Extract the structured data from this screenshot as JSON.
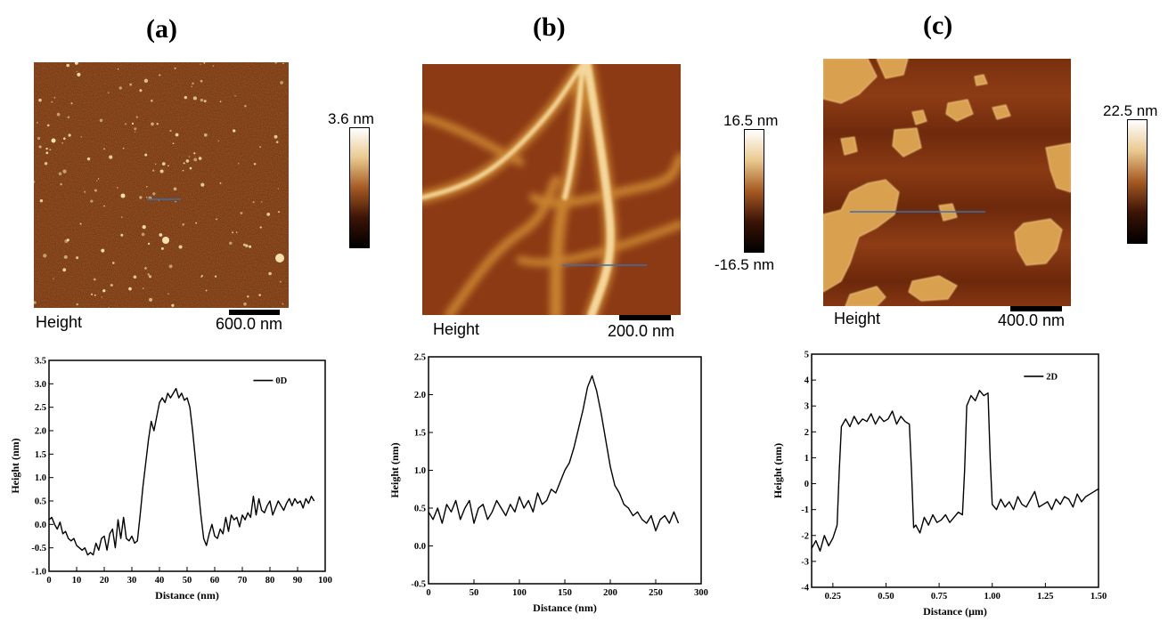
{
  "panels": [
    {
      "label": "(a)",
      "image": {
        "caption": "Height",
        "scale_bar": "600.0 nm",
        "colorbar_labels": [
          "3.6 nm"
        ]
      },
      "chart_data": {
        "type": "line",
        "xlabel": "Distance (nm)",
        "ylabel": "Height (nm)",
        "xlim": [
          0,
          100
        ],
        "ylim": [
          -1.0,
          3.5
        ],
        "xticks": [
          0,
          10,
          20,
          30,
          40,
          50,
          60,
          70,
          80,
          90,
          100
        ],
        "xtick_labels": [
          "0",
          "10",
          "20",
          "30",
          "40",
          "50",
          "60",
          "70",
          "80",
          "90",
          "100"
        ],
        "yticks": [
          -1.0,
          -0.5,
          0.0,
          0.5,
          1.0,
          1.5,
          2.0,
          2.5,
          3.0,
          3.5
        ],
        "ytick_labels": [
          "-1.0",
          "-0.5",
          "0.0",
          "0.5",
          "1.0",
          "1.5",
          "2.0",
          "2.5",
          "3.0",
          "3.5"
        ],
        "legend": "top-right",
        "series": [
          {
            "name": "0D",
            "x": [
              0,
              1,
              2,
              3,
              4,
              5,
              6,
              7,
              8,
              9,
              10,
              11,
              12,
              13,
              14,
              15,
              16,
              17,
              18,
              19,
              20,
              21,
              22,
              23,
              24,
              25,
              26,
              27,
              28,
              29,
              30,
              31,
              32,
              33,
              34,
              35,
              36,
              37,
              38,
              39,
              40,
              41,
              42,
              43,
              44,
              45,
              46,
              47,
              48,
              49,
              50,
              51,
              52,
              53,
              54,
              55,
              56,
              57,
              58,
              59,
              60,
              61,
              62,
              63,
              64,
              65,
              66,
              67,
              68,
              69,
              70,
              71,
              72,
              73,
              74,
              75,
              76,
              77,
              78,
              79,
              80,
              81,
              82,
              83,
              84,
              85,
              86,
              87,
              88,
              89,
              90,
              91,
              92,
              93,
              94,
              95,
              96
            ],
            "y": [
              0.1,
              0.15,
              0.0,
              -0.1,
              0.05,
              -0.2,
              -0.15,
              -0.3,
              -0.35,
              -0.3,
              -0.45,
              -0.5,
              -0.55,
              -0.5,
              -0.65,
              -0.6,
              -0.65,
              -0.4,
              -0.55,
              -0.3,
              -0.25,
              -0.55,
              -0.2,
              -0.1,
              -0.5,
              0.1,
              -0.3,
              0.15,
              -0.3,
              -0.35,
              -0.25,
              -0.4,
              -0.35,
              0.2,
              0.8,
              1.3,
              1.8,
              2.2,
              2.0,
              2.3,
              2.6,
              2.7,
              2.6,
              2.8,
              2.7,
              2.8,
              2.9,
              2.7,
              2.8,
              2.65,
              2.7,
              2.5,
              2.0,
              1.4,
              0.8,
              0.2,
              -0.3,
              -0.45,
              -0.2,
              0.0,
              -0.25,
              -0.3,
              -0.1,
              -0.2,
              0.15,
              -0.15,
              0.2,
              0.1,
              0.15,
              -0.05,
              0.2,
              0.1,
              0.25,
              0.15,
              0.6,
              0.2,
              0.55,
              0.3,
              0.25,
              0.4,
              0.5,
              0.2,
              0.35,
              0.5,
              0.4,
              0.3,
              0.45,
              0.55,
              0.4,
              0.55,
              0.45,
              0.5,
              0.35,
              0.55,
              0.45,
              0.6,
              0.5
            ]
          }
        ]
      }
    },
    {
      "label": "(b)",
      "image": {
        "caption": "Height",
        "scale_bar": "200.0 nm",
        "colorbar_labels": [
          "16.5 nm",
          "-16.5 nm"
        ]
      },
      "chart_data": {
        "type": "line",
        "xlabel": "Distance (nm)",
        "ylabel": "Height (nm)",
        "xlim": [
          0,
          300
        ],
        "ylim": [
          -0.5,
          2.5
        ],
        "xticks": [
          0,
          50,
          100,
          150,
          200,
          250,
          300
        ],
        "xtick_labels": [
          "0",
          "50",
          "100",
          "150",
          "200",
          "250",
          "300"
        ],
        "yticks": [
          -0.5,
          0.0,
          0.5,
          1.0,
          1.5,
          2.0,
          2.5
        ],
        "ytick_labels": [
          "-0.5",
          "0.0",
          "0.5",
          "1.0",
          "1.5",
          "2.0",
          "2.5"
        ],
        "series": [
          {
            "x": [
              0,
              5,
              10,
              15,
              20,
              25,
              30,
              35,
              40,
              45,
              50,
              55,
              60,
              65,
              70,
              75,
              80,
              85,
              90,
              95,
              100,
              105,
              110,
              115,
              120,
              125,
              130,
              135,
              140,
              145,
              150,
              155,
              160,
              165,
              170,
              175,
              180,
              185,
              190,
              195,
              200,
              205,
              210,
              215,
              220,
              225,
              230,
              235,
              240,
              245,
              250,
              255,
              260,
              265,
              270,
              275
            ],
            "y": [
              0.45,
              0.35,
              0.5,
              0.3,
              0.55,
              0.45,
              0.6,
              0.35,
              0.5,
              0.6,
              0.3,
              0.5,
              0.55,
              0.35,
              0.45,
              0.6,
              0.5,
              0.4,
              0.55,
              0.45,
              0.65,
              0.5,
              0.6,
              0.45,
              0.7,
              0.55,
              0.6,
              0.75,
              0.7,
              0.85,
              1.0,
              1.1,
              1.3,
              1.55,
              1.8,
              2.1,
              2.25,
              2.05,
              1.75,
              1.4,
              1.05,
              0.8,
              0.7,
              0.55,
              0.5,
              0.4,
              0.45,
              0.35,
              0.3,
              0.4,
              0.2,
              0.35,
              0.4,
              0.3,
              0.45,
              0.3
            ]
          }
        ]
      }
    },
    {
      "label": "(c)",
      "image": {
        "caption": "Height",
        "scale_bar": "400.0 nm",
        "colorbar_labels": [
          "22.5 nm"
        ]
      },
      "chart_data": {
        "type": "line",
        "xlabel": "Distance (μm)",
        "ylabel": "Height (nm)",
        "xlim": [
          0.15,
          1.5
        ],
        "ylim": [
          -4,
          5
        ],
        "xticks": [
          0.25,
          0.5,
          0.75,
          1.0,
          1.25,
          1.5
        ],
        "xtick_labels": [
          "0.25",
          "0.50",
          "0.75",
          "1.00",
          "1.25",
          "1.50"
        ],
        "yticks": [
          -4,
          -3,
          -2,
          -1,
          0,
          1,
          2,
          3,
          4,
          5
        ],
        "ytick_labels": [
          "-4",
          "-3",
          "-2",
          "-1",
          "0",
          "1",
          "2",
          "3",
          "4",
          "5"
        ],
        "legend": "top-right",
        "series": [
          {
            "name": "2D",
            "x": [
              0.15,
              0.17,
              0.19,
              0.21,
              0.23,
              0.25,
              0.27,
              0.28,
              0.29,
              0.31,
              0.33,
              0.35,
              0.37,
              0.39,
              0.41,
              0.43,
              0.45,
              0.47,
              0.49,
              0.51,
              0.53,
              0.55,
              0.57,
              0.59,
              0.61,
              0.62,
              0.63,
              0.64,
              0.66,
              0.68,
              0.7,
              0.72,
              0.74,
              0.76,
              0.78,
              0.8,
              0.82,
              0.84,
              0.86,
              0.87,
              0.88,
              0.9,
              0.92,
              0.94,
              0.96,
              0.98,
              0.99,
              1.0,
              1.02,
              1.04,
              1.06,
              1.08,
              1.1,
              1.12,
              1.14,
              1.16,
              1.18,
              1.2,
              1.22,
              1.24,
              1.26,
              1.28,
              1.3,
              1.32,
              1.34,
              1.36,
              1.38,
              1.4,
              1.42,
              1.44,
              1.46,
              1.48,
              1.5
            ],
            "y": [
              -2.5,
              -2.2,
              -2.6,
              -2.0,
              -2.4,
              -2.1,
              -1.6,
              0.5,
              2.2,
              2.5,
              2.2,
              2.6,
              2.3,
              2.5,
              2.4,
              2.7,
              2.3,
              2.6,
              2.4,
              2.5,
              2.8,
              2.3,
              2.6,
              2.4,
              2.3,
              0.5,
              -1.7,
              -1.6,
              -1.9,
              -1.3,
              -1.6,
              -1.2,
              -1.5,
              -1.4,
              -1.2,
              -1.5,
              -1.3,
              -1.1,
              -1.2,
              0.5,
              3.0,
              3.4,
              3.2,
              3.6,
              3.4,
              3.5,
              1.0,
              -0.8,
              -1.0,
              -0.6,
              -0.9,
              -0.7,
              -1.0,
              -0.5,
              -0.8,
              -0.9,
              -0.6,
              -0.3,
              -0.9,
              -0.8,
              -0.7,
              -1.0,
              -0.6,
              -0.8,
              -0.5,
              -0.6,
              -0.9,
              -0.4,
              -0.7,
              -0.5,
              -0.4,
              -0.3,
              -0.2
            ]
          }
        ]
      }
    }
  ],
  "colors": {
    "afm_dark": "#4a1d06",
    "afm_mid": "#8b3a12",
    "afm_light": "#f2d79a",
    "line": "#000000",
    "profile_line": "#3a6fb0"
  }
}
